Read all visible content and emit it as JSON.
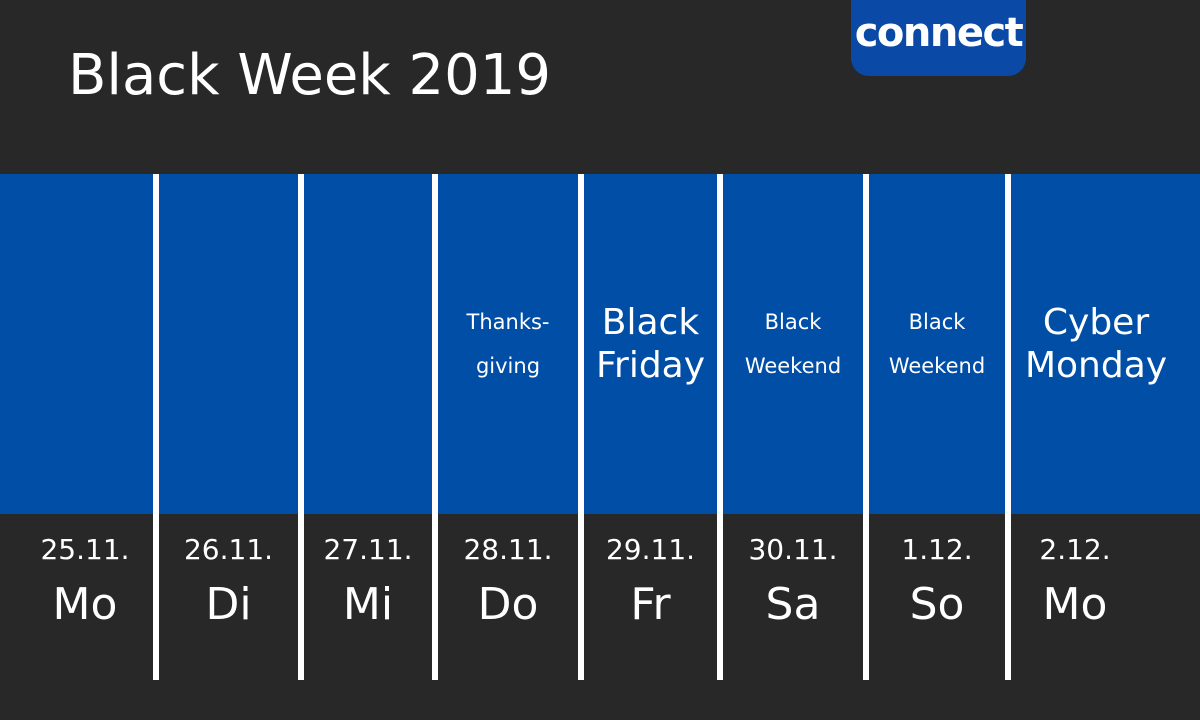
{
  "title": "Black Week 2019",
  "logo": "connect",
  "colors": {
    "background": "#282828",
    "band": "#004ea6",
    "logo": "#0a4aa6",
    "text": "#ffffff"
  },
  "days": [
    {
      "date": "25.11.",
      "day": "Mo",
      "event": []
    },
    {
      "date": "26.11.",
      "day": "Di",
      "event": []
    },
    {
      "date": "27.11.",
      "day": "Mi",
      "event": []
    },
    {
      "date": "28.11.",
      "day": "Do",
      "event": [
        "Thanks-",
        "giving"
      ]
    },
    {
      "date": "29.11.",
      "day": "Fr",
      "event": [
        "Black",
        "Friday"
      ]
    },
    {
      "date": "30.11.",
      "day": "Sa",
      "event": [
        "Black",
        "Weekend"
      ]
    },
    {
      "date": "1.12.",
      "day": "So",
      "event": [
        "Black",
        "Weekend"
      ]
    },
    {
      "date": "2.12.",
      "day": "Mo",
      "event": [
        "Cyber",
        "Monday"
      ]
    }
  ]
}
